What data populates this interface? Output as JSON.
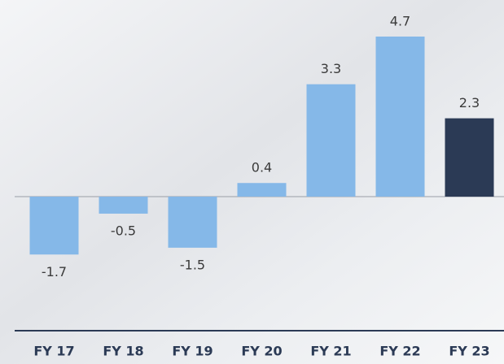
{
  "chart_data": {
    "type": "bar",
    "categories": [
      "FY 17",
      "FY 18",
      "FY 19",
      "FY 20",
      "FY 21",
      "FY 22",
      "FY 23"
    ],
    "values": [
      -1.7,
      -0.5,
      -1.5,
      0.4,
      3.3,
      4.7,
      2.3
    ],
    "colors": [
      "#85b8e8",
      "#85b8e8",
      "#85b8e8",
      "#85b8e8",
      "#85b8e8",
      "#85b8e8",
      "#2b3a55"
    ]
  }
}
